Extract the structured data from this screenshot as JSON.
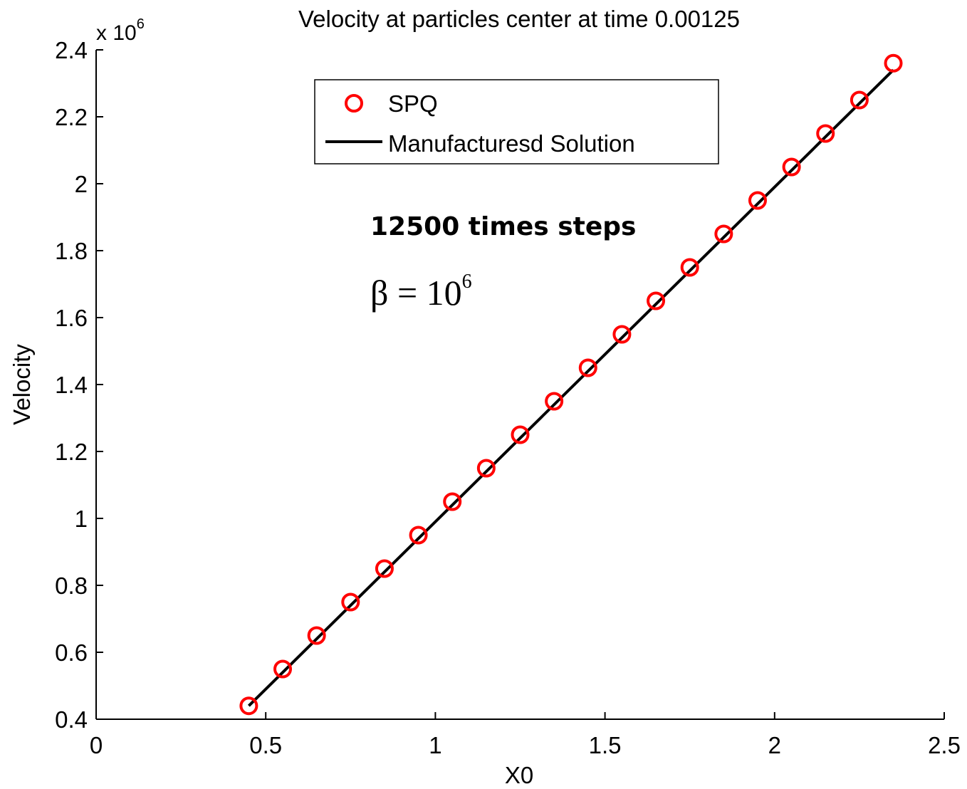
{
  "chart_data": {
    "type": "scatter",
    "title": "Velocity at particles center at time 0.00125",
    "xlabel": "X0",
    "ylabel": "Velocity",
    "y_multiplier_label": "x 10",
    "y_multiplier_exponent": "6",
    "xlim": [
      0,
      2.5
    ],
    "ylim": [
      0.4,
      2.4
    ],
    "y_scale_factor": 1000000,
    "x_ticks": [
      0,
      0.5,
      1,
      1.5,
      2,
      2.5
    ],
    "x_tick_labels": [
      "0",
      "0.5",
      "1",
      "1.5",
      "2",
      "2.5"
    ],
    "y_ticks": [
      0.4,
      0.6,
      0.8,
      1,
      1.2,
      1.4,
      1.6,
      1.8,
      2,
      2.2,
      2.4
    ],
    "y_tick_labels": [
      "0.4",
      "0.6",
      "0.8",
      "1",
      "1.2",
      "1.4",
      "1.6",
      "1.8",
      "2",
      "2.2",
      "2.4"
    ],
    "grid": false,
    "legend_position": "top-center",
    "series": [
      {
        "name": "SPQ",
        "marker": "circle",
        "color": "#ff0000",
        "x": [
          0.45,
          0.55,
          0.65,
          0.75,
          0.85,
          0.95,
          1.05,
          1.15,
          1.25,
          1.35,
          1.45,
          1.55,
          1.65,
          1.75,
          1.85,
          1.95,
          2.05,
          2.15,
          2.25,
          2.35
        ],
        "y": [
          0.44,
          0.55,
          0.65,
          0.75,
          0.85,
          0.95,
          1.05,
          1.15,
          1.25,
          1.35,
          1.45,
          1.55,
          1.65,
          1.75,
          1.85,
          1.95,
          2.05,
          2.15,
          2.25,
          2.36
        ]
      },
      {
        "name": "Manufacturesd Solution",
        "marker": "line",
        "color": "#000000",
        "x": [
          0.45,
          2.35
        ],
        "y": [
          0.44,
          2.34
        ]
      }
    ],
    "annotations": [
      {
        "text": "12500 times steps"
      },
      {
        "text_base": "β = 10",
        "text_sup": "6"
      }
    ]
  }
}
